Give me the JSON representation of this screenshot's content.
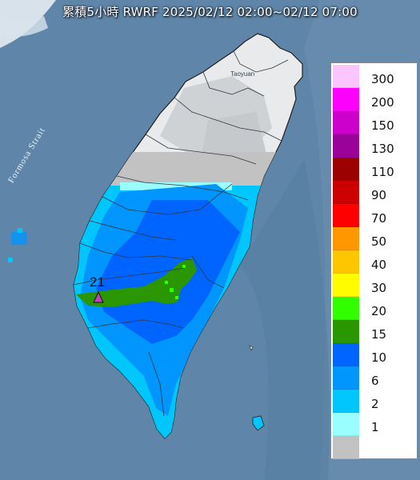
{
  "title": "累積5小時 RWRF 2025/02/12 02:00~02/12 07:00",
  "places": {
    "taoyuan": "Taoyuan"
  },
  "sea_label": "Formosa Strait",
  "max_marker": {
    "value": "21",
    "icon": "triangle-icon",
    "color": "#c040c0"
  },
  "legend": {
    "entries": [
      {
        "label": "300",
        "color": "#fdc5fe"
      },
      {
        "label": "200",
        "color": "#fc02fd"
      },
      {
        "label": "150",
        "color": "#cc02cc"
      },
      {
        "label": "130",
        "color": "#9a029a"
      },
      {
        "label": "110",
        "color": "#9b0100"
      },
      {
        "label": "90",
        "color": "#cc0000"
      },
      {
        "label": "70",
        "color": "#fe0000"
      },
      {
        "label": "50",
        "color": "#fe9700"
      },
      {
        "label": "40",
        "color": "#fec600"
      },
      {
        "label": "30",
        "color": "#fffc00"
      },
      {
        "label": "20",
        "color": "#32fe00"
      },
      {
        "label": "15",
        "color": "#2a9600"
      },
      {
        "label": "10",
        "color": "#0064fe"
      },
      {
        "label": "6",
        "color": "#0096fe"
      },
      {
        "label": "2",
        "color": "#00c6fe"
      },
      {
        "label": "1",
        "color": "#9bfefe"
      },
      {
        "label": "",
        "color": "#c2c2c2"
      }
    ]
  }
}
